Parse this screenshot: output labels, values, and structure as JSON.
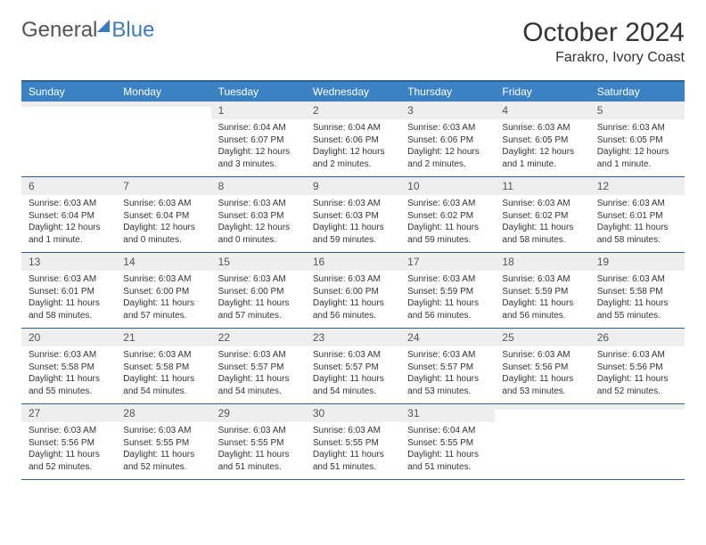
{
  "logo": {
    "part1": "General",
    "part2": "Blue"
  },
  "title": {
    "month": "October 2024",
    "location": "Farakro, Ivory Coast"
  },
  "colors": {
    "header_bg": "#3b82c4",
    "date_bg": "#eeeeee",
    "border": "#2b5f8f",
    "logo_blue": "#3b7bbf"
  },
  "day_names": [
    "Sunday",
    "Monday",
    "Tuesday",
    "Wednesday",
    "Thursday",
    "Friday",
    "Saturday"
  ],
  "weeks": [
    [
      {
        "date": "",
        "lines": [
          "",
          "",
          ""
        ]
      },
      {
        "date": "",
        "lines": [
          "",
          "",
          ""
        ]
      },
      {
        "date": "1",
        "lines": [
          "Sunrise: 6:04 AM",
          "Sunset: 6:07 PM",
          "Daylight: 12 hours and 3 minutes."
        ]
      },
      {
        "date": "2",
        "lines": [
          "Sunrise: 6:04 AM",
          "Sunset: 6:06 PM",
          "Daylight: 12 hours and 2 minutes."
        ]
      },
      {
        "date": "3",
        "lines": [
          "Sunrise: 6:03 AM",
          "Sunset: 6:06 PM",
          "Daylight: 12 hours and 2 minutes."
        ]
      },
      {
        "date": "4",
        "lines": [
          "Sunrise: 6:03 AM",
          "Sunset: 6:05 PM",
          "Daylight: 12 hours and 1 minute."
        ]
      },
      {
        "date": "5",
        "lines": [
          "Sunrise: 6:03 AM",
          "Sunset: 6:05 PM",
          "Daylight: 12 hours and 1 minute."
        ]
      }
    ],
    [
      {
        "date": "6",
        "lines": [
          "Sunrise: 6:03 AM",
          "Sunset: 6:04 PM",
          "Daylight: 12 hours and 1 minute."
        ]
      },
      {
        "date": "7",
        "lines": [
          "Sunrise: 6:03 AM",
          "Sunset: 6:04 PM",
          "Daylight: 12 hours and 0 minutes."
        ]
      },
      {
        "date": "8",
        "lines": [
          "Sunrise: 6:03 AM",
          "Sunset: 6:03 PM",
          "Daylight: 12 hours and 0 minutes."
        ]
      },
      {
        "date": "9",
        "lines": [
          "Sunrise: 6:03 AM",
          "Sunset: 6:03 PM",
          "Daylight: 11 hours and 59 minutes."
        ]
      },
      {
        "date": "10",
        "lines": [
          "Sunrise: 6:03 AM",
          "Sunset: 6:02 PM",
          "Daylight: 11 hours and 59 minutes."
        ]
      },
      {
        "date": "11",
        "lines": [
          "Sunrise: 6:03 AM",
          "Sunset: 6:02 PM",
          "Daylight: 11 hours and 58 minutes."
        ]
      },
      {
        "date": "12",
        "lines": [
          "Sunrise: 6:03 AM",
          "Sunset: 6:01 PM",
          "Daylight: 11 hours and 58 minutes."
        ]
      }
    ],
    [
      {
        "date": "13",
        "lines": [
          "Sunrise: 6:03 AM",
          "Sunset: 6:01 PM",
          "Daylight: 11 hours and 58 minutes."
        ]
      },
      {
        "date": "14",
        "lines": [
          "Sunrise: 6:03 AM",
          "Sunset: 6:00 PM",
          "Daylight: 11 hours and 57 minutes."
        ]
      },
      {
        "date": "15",
        "lines": [
          "Sunrise: 6:03 AM",
          "Sunset: 6:00 PM",
          "Daylight: 11 hours and 57 minutes."
        ]
      },
      {
        "date": "16",
        "lines": [
          "Sunrise: 6:03 AM",
          "Sunset: 6:00 PM",
          "Daylight: 11 hours and 56 minutes."
        ]
      },
      {
        "date": "17",
        "lines": [
          "Sunrise: 6:03 AM",
          "Sunset: 5:59 PM",
          "Daylight: 11 hours and 56 minutes."
        ]
      },
      {
        "date": "18",
        "lines": [
          "Sunrise: 6:03 AM",
          "Sunset: 5:59 PM",
          "Daylight: 11 hours and 56 minutes."
        ]
      },
      {
        "date": "19",
        "lines": [
          "Sunrise: 6:03 AM",
          "Sunset: 5:58 PM",
          "Daylight: 11 hours and 55 minutes."
        ]
      }
    ],
    [
      {
        "date": "20",
        "lines": [
          "Sunrise: 6:03 AM",
          "Sunset: 5:58 PM",
          "Daylight: 11 hours and 55 minutes."
        ]
      },
      {
        "date": "21",
        "lines": [
          "Sunrise: 6:03 AM",
          "Sunset: 5:58 PM",
          "Daylight: 11 hours and 54 minutes."
        ]
      },
      {
        "date": "22",
        "lines": [
          "Sunrise: 6:03 AM",
          "Sunset: 5:57 PM",
          "Daylight: 11 hours and 54 minutes."
        ]
      },
      {
        "date": "23",
        "lines": [
          "Sunrise: 6:03 AM",
          "Sunset: 5:57 PM",
          "Daylight: 11 hours and 54 minutes."
        ]
      },
      {
        "date": "24",
        "lines": [
          "Sunrise: 6:03 AM",
          "Sunset: 5:57 PM",
          "Daylight: 11 hours and 53 minutes."
        ]
      },
      {
        "date": "25",
        "lines": [
          "Sunrise: 6:03 AM",
          "Sunset: 5:56 PM",
          "Daylight: 11 hours and 53 minutes."
        ]
      },
      {
        "date": "26",
        "lines": [
          "Sunrise: 6:03 AM",
          "Sunset: 5:56 PM",
          "Daylight: 11 hours and 52 minutes."
        ]
      }
    ],
    [
      {
        "date": "27",
        "lines": [
          "Sunrise: 6:03 AM",
          "Sunset: 5:56 PM",
          "Daylight: 11 hours and 52 minutes."
        ]
      },
      {
        "date": "28",
        "lines": [
          "Sunrise: 6:03 AM",
          "Sunset: 5:55 PM",
          "Daylight: 11 hours and 52 minutes."
        ]
      },
      {
        "date": "29",
        "lines": [
          "Sunrise: 6:03 AM",
          "Sunset: 5:55 PM",
          "Daylight: 11 hours and 51 minutes."
        ]
      },
      {
        "date": "30",
        "lines": [
          "Sunrise: 6:03 AM",
          "Sunset: 5:55 PM",
          "Daylight: 11 hours and 51 minutes."
        ]
      },
      {
        "date": "31",
        "lines": [
          "Sunrise: 6:04 AM",
          "Sunset: 5:55 PM",
          "Daylight: 11 hours and 51 minutes."
        ]
      },
      {
        "date": "",
        "lines": [
          "",
          "",
          ""
        ]
      },
      {
        "date": "",
        "lines": [
          "",
          "",
          ""
        ]
      }
    ]
  ]
}
